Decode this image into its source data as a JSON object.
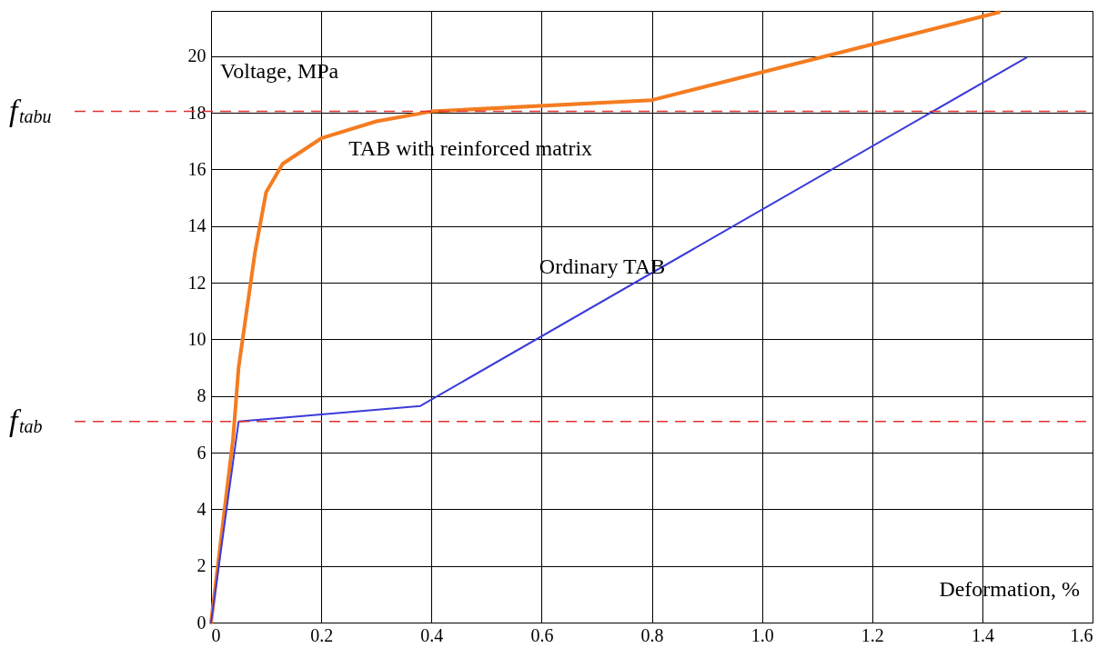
{
  "chart_data": {
    "type": "line",
    "xlabel": "Deformation, %",
    "ylabel": "Voltage, MPa",
    "xlim": [
      0,
      1.6
    ],
    "ylim": [
      0,
      21.6
    ],
    "xticks": [
      0,
      0.2,
      0.4,
      0.6,
      0.8,
      {
        "value": 1,
        "label": "1.0"
      },
      1.2,
      1.4,
      1.6
    ],
    "yticks": [
      0,
      2,
      4,
      6,
      8,
      10,
      12,
      14,
      16,
      18,
      20
    ],
    "grid": true,
    "line_style": "solid",
    "series": [
      {
        "name": "TAB with reinforced matrix",
        "color": "#f47c20",
        "x": [
          0,
          0.04,
          0.05,
          0.08,
          0.1,
          0.13,
          0.2,
          0.3,
          0.4,
          0.8,
          1.43
        ],
        "values": [
          0,
          6.5,
          9,
          13.1,
          15.2,
          16.2,
          17.1,
          17.7,
          18.05,
          18.45,
          21.55
        ]
      },
      {
        "name": "Ordinary TAB",
        "color": "#3b3bdb",
        "x": [
          0,
          0.05,
          0.38,
          1.48
        ],
        "values": [
          0,
          7.1,
          7.65,
          19.95
        ]
      }
    ],
    "ref_lines": [
      {
        "axis": "y",
        "value": 18.05,
        "label": "f$_{tabu}$",
        "color": "#e03030",
        "line_style": "dashed"
      },
      {
        "axis": "y",
        "value": 7.1,
        "label": "f$_{tab}$",
        "color": "#e03030",
        "line_style": "dashed"
      }
    ]
  }
}
